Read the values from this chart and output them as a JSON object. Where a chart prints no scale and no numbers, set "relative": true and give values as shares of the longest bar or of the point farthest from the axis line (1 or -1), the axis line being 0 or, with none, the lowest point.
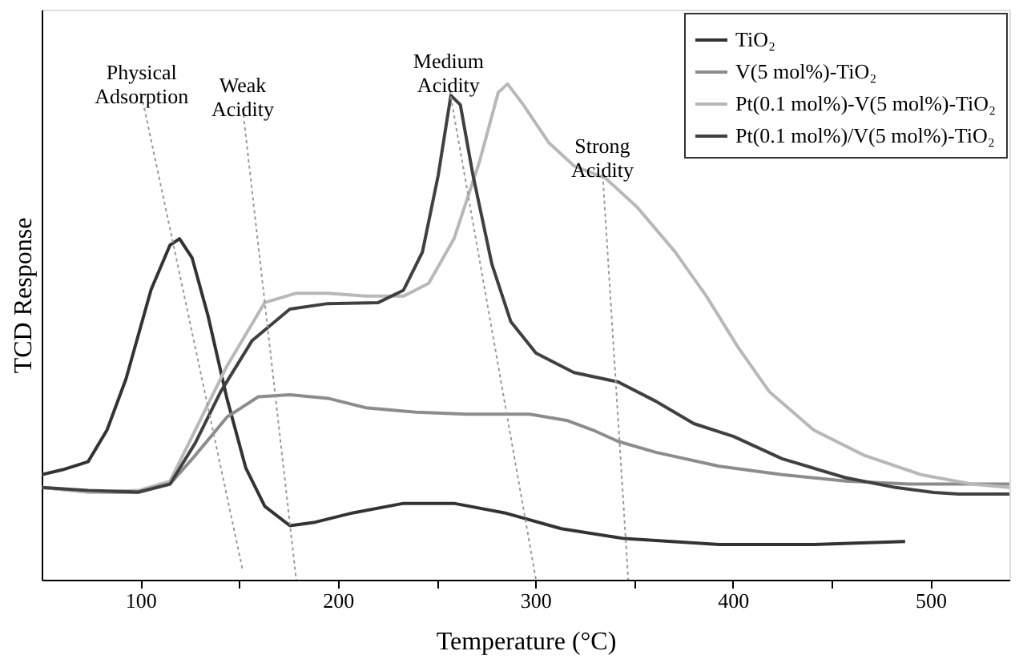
{
  "chart_data": {
    "type": "line",
    "relative": true,
    "xlabel": "Temperature (°C)",
    "ylabel": "TCD Response",
    "xlim": [
      50,
      540
    ],
    "xticks": [
      100,
      {
        "value": 150,
        "label": null
      },
      200,
      {
        "value": 250,
        "label": null
      },
      300,
      {
        "value": 350,
        "label": null
      },
      400,
      {
        "value": 450,
        "label": null
      },
      500
    ],
    "grid": false,
    "legend": "top right",
    "series": [
      {
        "name": "TiO₂",
        "color": "#333333",
        "x": [
          50,
          60.7,
          73.5,
          83.1,
          92.7,
          105.4,
          115.0,
          119.8,
          126.2,
          134.2,
          143.8,
          153.4,
          163.0,
          175.7,
          188.5,
          207.7,
          233.2,
          258.8,
          284.3,
          313.1,
          345.0,
          393.0,
          440.9,
          487.2
        ],
        "values": [
          0.212,
          0.222,
          0.238,
          0.302,
          0.405,
          0.585,
          0.675,
          0.688,
          0.649,
          0.533,
          0.366,
          0.225,
          0.148,
          0.109,
          0.116,
          0.135,
          0.154,
          0.154,
          0.135,
          0.103,
          0.083,
          0.071,
          0.071,
          0.077
        ]
      },
      {
        "name": "V(5 mol%)-TiO₂",
        "color": "#8c8c8c",
        "x": [
          50,
          73.5,
          99.0,
          115.0,
          127.8,
          143.8,
          159.7,
          175.7,
          194.9,
          214.1,
          239.6,
          265.2,
          297.1,
          316.3,
          329.1,
          341.9,
          361.0,
          393.0,
          424.9,
          456.9,
          488.8,
          520.8,
          540
        ],
        "values": [
          0.186,
          0.177,
          0.176,
          0.193,
          0.251,
          0.328,
          0.369,
          0.373,
          0.366,
          0.347,
          0.338,
          0.334,
          0.334,
          0.321,
          0.302,
          0.279,
          0.257,
          0.229,
          0.212,
          0.199,
          0.193,
          0.193,
          0.193
        ]
      },
      {
        "name": "Pt(0.1 mol%)-V(5 mol%)-TiO₂",
        "color": "#b8b8b8",
        "x": [
          50,
          73.5,
          99.0,
          115.0,
          127.8,
          143.8,
          162.9,
          178.9,
          194.9,
          214.1,
          233.2,
          246.0,
          258.8,
          271.6,
          281.2,
          285.9,
          293.9,
          306.7,
          319.5,
          335.5,
          351.4,
          370.6,
          386.6,
          402.6,
          418.5,
          440.9,
          466.5,
          495.2,
          520.8,
          540
        ],
        "values": [
          0.186,
          0.177,
          0.18,
          0.199,
          0.302,
          0.431,
          0.559,
          0.578,
          0.578,
          0.572,
          0.572,
          0.598,
          0.688,
          0.842,
          0.983,
          1.0,
          0.958,
          0.882,
          0.835,
          0.81,
          0.752,
          0.662,
          0.572,
          0.469,
          0.379,
          0.302,
          0.251,
          0.212,
          0.193,
          0.186
        ]
      },
      {
        "name": "Pt(0.1 mol%)/V(5 mol%)-TiO₂",
        "color": "#404040",
        "x": [
          50,
          73.5,
          99.0,
          115.0,
          127.8,
          140.6,
          156.5,
          175.7,
          194.9,
          220.4,
          233.2,
          242.8,
          250.8,
          257.2,
          262.0,
          268.4,
          278.0,
          287.5,
          300.3,
          319.5,
          341.9,
          361.0,
          380.2,
          400.4,
          424.9,
          456.9,
          482.4,
          501.6,
          514.4,
          540
        ],
        "values": [
          0.186,
          0.18,
          0.177,
          0.193,
          0.276,
          0.379,
          0.482,
          0.546,
          0.557,
          0.559,
          0.584,
          0.661,
          0.816,
          0.977,
          0.958,
          0.816,
          0.636,
          0.521,
          0.457,
          0.418,
          0.399,
          0.36,
          0.315,
          0.289,
          0.244,
          0.206,
          0.186,
          0.176,
          0.173,
          0.173
        ]
      },
      {
        "type": "line",
        "color": "#999999",
        "line_style": "dotted",
        "x": [
          100.6,
          151.8
        ],
        "values": [
          0.977,
          0.019
        ]
      },
      {
        "type": "line",
        "color": "#999999",
        "line_style": "dotted",
        "x": [
          151.8,
          178.9
        ],
        "values": [
          0.951,
          0.0
        ]
      },
      {
        "type": "line",
        "color": "#999999",
        "line_style": "dotted",
        "x": [
          256.0,
          300.3
        ],
        "values": [
          1.0,
          0.0
        ]
      },
      {
        "type": "line",
        "color": "#999999",
        "line_style": "dotted",
        "x": [
          333.9,
          347.0
        ],
        "values": [
          0.829,
          0.0
        ]
      }
    ],
    "annotations": [
      {
        "text": "Physical Adsorption",
        "x": 100.6,
        "y": 0.977
      },
      {
        "text": "Weak Acidity",
        "x": 151.8,
        "y": 0.951
      },
      {
        "text": "Medium Acidity",
        "x": 256.0,
        "y": 1.0
      },
      {
        "text": "Strong Acidity",
        "x": 333.9,
        "y": 0.829
      }
    ]
  }
}
